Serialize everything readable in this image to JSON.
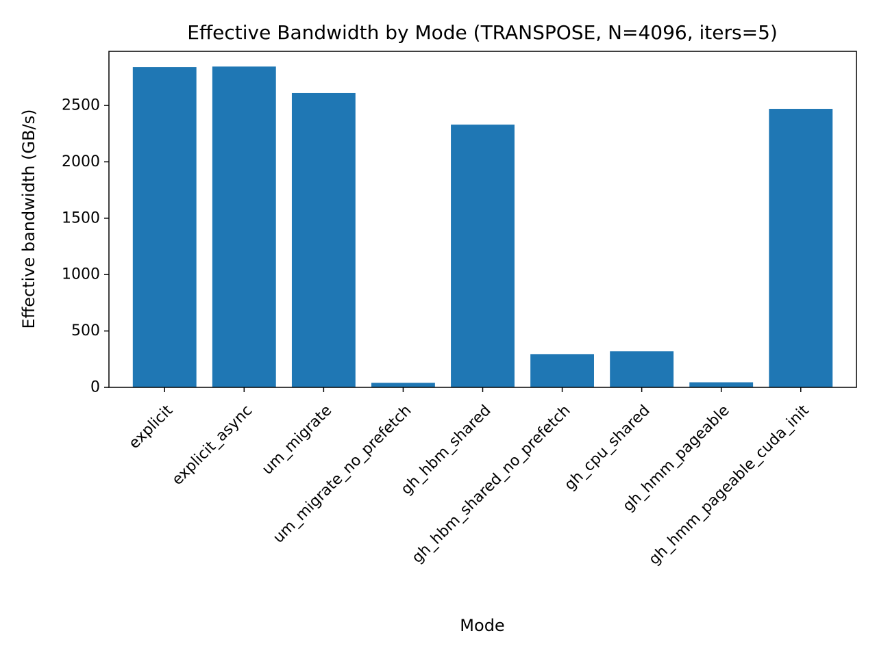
{
  "chart_data": {
    "type": "bar",
    "title": "Effective Bandwidth by Mode (TRANSPOSE, N=4096, iters=5)",
    "xlabel": "Mode",
    "ylabel": "Effective bandwidth (GB/s)",
    "categories": [
      "explicit",
      "explicit_async",
      "um_migrate",
      "um_migrate_no_prefetch",
      "gh_hbm_shared",
      "gh_hbm_shared_no_prefetch",
      "gh_cpu_shared",
      "gh_hmm_pageable",
      "gh_hmm_pageable_cuda_init"
    ],
    "values": [
      2840,
      2845,
      2610,
      40,
      2330,
      295,
      320,
      45,
      2470
    ],
    "ylim": [
      0,
      2980
    ],
    "yticks": [
      0,
      500,
      1000,
      1500,
      2000,
      2500
    ],
    "bar_color": "#1f77b4",
    "grid": false,
    "legend": "none"
  }
}
